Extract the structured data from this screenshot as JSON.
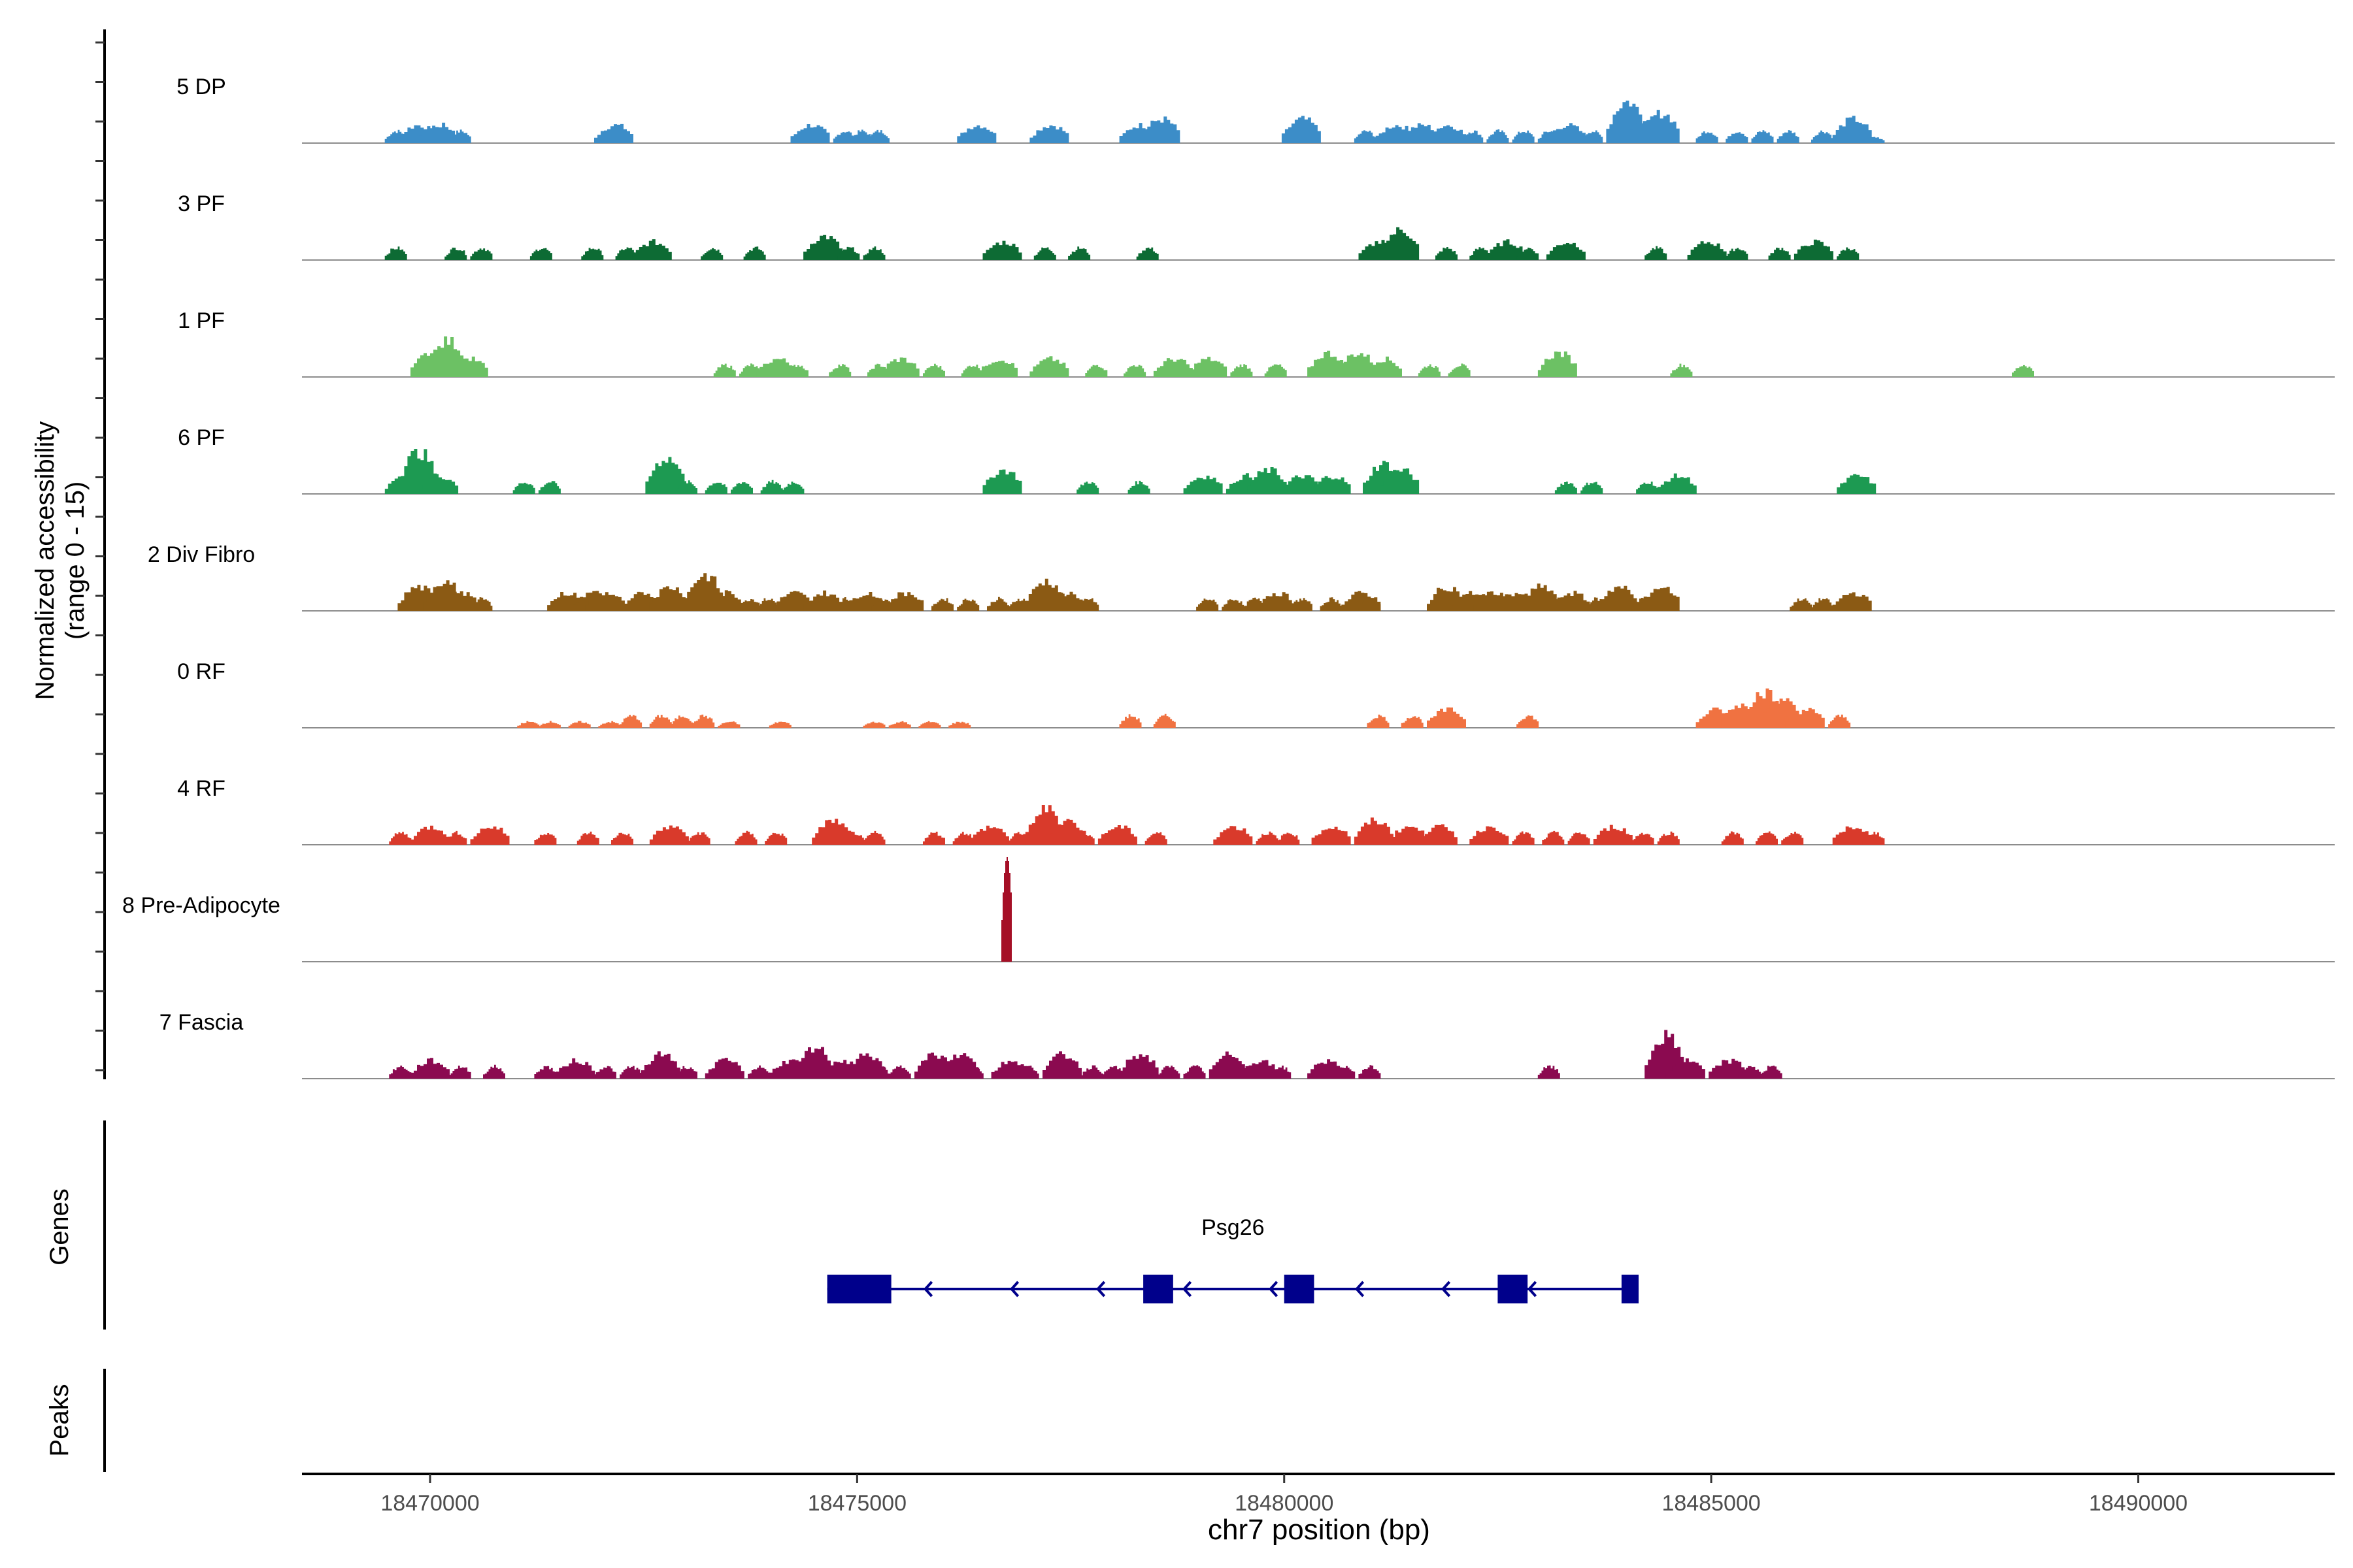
{
  "chart_data": {
    "type": "area",
    "title": "",
    "ylabel_line1": "Normalized accessibility",
    "ylabel_line2": "(range 0 - 15)",
    "ylim": [
      0,
      15
    ],
    "xlabel": "chr7 position (bp)",
    "xlim": [
      18468500,
      18492300
    ],
    "x_ticks": [
      18470000,
      18475000,
      18480000,
      18485000,
      18490000
    ],
    "x_tick_labels": [
      "18470000",
      "18475000",
      "18480000",
      "18485000",
      "18490000"
    ],
    "series": [
      {
        "name": "5 DP",
        "color": "#3C8DC8",
        "points": [
          [
            18469600,
            2
          ],
          [
            18469850,
            3
          ],
          [
            18470100,
            3
          ],
          [
            18470350,
            2
          ],
          [
            18472150,
            3
          ],
          [
            18474450,
            3
          ],
          [
            18474850,
            2
          ],
          [
            18475050,
            2
          ],
          [
            18475250,
            2
          ],
          [
            18476400,
            3
          ],
          [
            18477250,
            3
          ],
          [
            18478300,
            3
          ],
          [
            18478550,
            4
          ],
          [
            18480200,
            4
          ],
          [
            18480950,
            2
          ],
          [
            18481300,
            3
          ],
          [
            18481600,
            3
          ],
          [
            18481900,
            3
          ],
          [
            18482200,
            2
          ],
          [
            18482500,
            2
          ],
          [
            18482800,
            2
          ],
          [
            18483100,
            2
          ],
          [
            18483300,
            3
          ],
          [
            18483600,
            2
          ],
          [
            18484000,
            7
          ],
          [
            18484200,
            4
          ],
          [
            18484400,
            5
          ],
          [
            18484950,
            2
          ],
          [
            18485300,
            2
          ],
          [
            18485600,
            2
          ],
          [
            18485900,
            2
          ],
          [
            18486300,
            2
          ],
          [
            18486650,
            4
          ],
          [
            18486900,
            1
          ]
        ]
      },
      {
        "name": "3 PF",
        "color": "#0D6B34",
        "points": [
          [
            18469600,
            2
          ],
          [
            18470300,
            2
          ],
          [
            18470600,
            2
          ],
          [
            18471300,
            2
          ],
          [
            18471900,
            2
          ],
          [
            18472300,
            2
          ],
          [
            18472600,
            3
          ],
          [
            18473300,
            2
          ],
          [
            18473800,
            2
          ],
          [
            18474600,
            4
          ],
          [
            18474900,
            2
          ],
          [
            18475200,
            2
          ],
          [
            18476700,
            3
          ],
          [
            18477200,
            2
          ],
          [
            18477600,
            2
          ],
          [
            18478400,
            2
          ],
          [
            18481100,
            3
          ],
          [
            18481350,
            5
          ],
          [
            18481900,
            2
          ],
          [
            18482300,
            2
          ],
          [
            18482600,
            3
          ],
          [
            18482850,
            2
          ],
          [
            18483300,
            3
          ],
          [
            18484350,
            2
          ],
          [
            18484950,
            3
          ],
          [
            18485300,
            2
          ],
          [
            18485800,
            2
          ],
          [
            18486200,
            3
          ],
          [
            18486600,
            2
          ]
        ]
      },
      {
        "name": "1 PF",
        "color": "#6CC164",
        "points": [
          [
            18470000,
            4
          ],
          [
            18470200,
            6
          ],
          [
            18470450,
            3
          ],
          [
            18473450,
            2
          ],
          [
            18473750,
            2
          ],
          [
            18474050,
            3
          ],
          [
            18474300,
            2
          ],
          [
            18474800,
            2
          ],
          [
            18475250,
            2
          ],
          [
            18475500,
            3
          ],
          [
            18475900,
            2
          ],
          [
            18476350,
            2
          ],
          [
            18476650,
            3
          ],
          [
            18477250,
            3
          ],
          [
            18477800,
            2
          ],
          [
            18478250,
            2
          ],
          [
            18478700,
            3
          ],
          [
            18479100,
            3
          ],
          [
            18479500,
            2
          ],
          [
            18479900,
            2
          ],
          [
            18480500,
            4
          ],
          [
            18480850,
            4
          ],
          [
            18481150,
            3
          ],
          [
            18481700,
            2
          ],
          [
            18482050,
            2
          ],
          [
            18483200,
            4
          ],
          [
            18484650,
            2
          ],
          [
            18488650,
            2
          ]
        ]
      },
      {
        "name": "6 PF",
        "color": "#1D9A52",
        "points": [
          [
            18469700,
            3
          ],
          [
            18469850,
            7
          ],
          [
            18470100,
            3
          ],
          [
            18471100,
            2
          ],
          [
            18471400,
            2
          ],
          [
            18472750,
            6
          ],
          [
            18473000,
            2
          ],
          [
            18473350,
            2
          ],
          [
            18473650,
            2
          ],
          [
            18474000,
            2
          ],
          [
            18474250,
            2
          ],
          [
            18476700,
            4
          ],
          [
            18477700,
            2
          ],
          [
            18478300,
            2
          ],
          [
            18479050,
            3
          ],
          [
            18479550,
            3
          ],
          [
            18479800,
            4
          ],
          [
            18480200,
            3
          ],
          [
            18480550,
            3
          ],
          [
            18481150,
            5
          ],
          [
            18481350,
            4
          ],
          [
            18483300,
            2
          ],
          [
            18483600,
            2
          ],
          [
            18484250,
            2
          ],
          [
            18484600,
            3
          ],
          [
            18486700,
            3
          ]
        ]
      },
      {
        "name": "2 Div Fibro",
        "color": "#8B5A14",
        "points": [
          [
            18469850,
            4
          ],
          [
            18470150,
            5
          ],
          [
            18470350,
            3
          ],
          [
            18470600,
            2
          ],
          [
            18471600,
            3
          ],
          [
            18471900,
            3
          ],
          [
            18472050,
            3
          ],
          [
            18472500,
            3
          ],
          [
            18472800,
            4
          ],
          [
            18473200,
            6
          ],
          [
            18473450,
            3
          ],
          [
            18473750,
            2
          ],
          [
            18473950,
            2
          ],
          [
            18474250,
            3
          ],
          [
            18474600,
            3
          ],
          [
            18474850,
            2
          ],
          [
            18475100,
            3
          ],
          [
            18475300,
            2
          ],
          [
            18475550,
            3
          ],
          [
            18476000,
            2
          ],
          [
            18476300,
            2
          ],
          [
            18476650,
            2
          ],
          [
            18476900,
            2
          ],
          [
            18477200,
            5
          ],
          [
            18477450,
            3
          ],
          [
            18477700,
            2
          ],
          [
            18479100,
            2
          ],
          [
            18479400,
            2
          ],
          [
            18479650,
            2
          ],
          [
            18479900,
            3
          ],
          [
            18480200,
            2
          ],
          [
            18480550,
            2
          ],
          [
            18480900,
            3
          ],
          [
            18481000,
            2
          ],
          [
            18481900,
            4
          ],
          [
            18482200,
            3
          ],
          [
            18482450,
            3
          ],
          [
            18482700,
            3
          ],
          [
            18483000,
            4
          ],
          [
            18483350,
            3
          ],
          [
            18483650,
            2
          ],
          [
            18483900,
            4
          ],
          [
            18484200,
            2
          ],
          [
            18484400,
            4
          ],
          [
            18486050,
            2
          ],
          [
            18486300,
            2
          ],
          [
            18486650,
            3
          ]
        ]
      },
      {
        "name": "0 RF",
        "color": "#F07241",
        "points": [
          [
            18471150,
            1
          ],
          [
            18471400,
            1
          ],
          [
            18471750,
            1
          ],
          [
            18472100,
            1
          ],
          [
            18472350,
            2
          ],
          [
            18472700,
            2
          ],
          [
            18472950,
            2
          ],
          [
            18473200,
            2
          ],
          [
            18473500,
            1
          ],
          [
            18474100,
            1
          ],
          [
            18475200,
            1
          ],
          [
            18475500,
            1
          ],
          [
            18475850,
            1
          ],
          [
            18476200,
            1
          ],
          [
            18478200,
            2
          ],
          [
            18478600,
            2
          ],
          [
            18481100,
            2
          ],
          [
            18481500,
            2
          ],
          [
            18481900,
            3
          ],
          [
            18482850,
            2
          ],
          [
            18485050,
            3
          ],
          [
            18485350,
            4
          ],
          [
            18485600,
            6
          ],
          [
            18485800,
            5
          ],
          [
            18486100,
            3
          ],
          [
            18486500,
            2
          ]
        ]
      },
      {
        "name": "4 RF",
        "color": "#D93A2B",
        "points": [
          [
            18469650,
            2
          ],
          [
            18470000,
            3
          ],
          [
            18470300,
            2
          ],
          [
            18470700,
            3
          ],
          [
            18471350,
            2
          ],
          [
            18471850,
            2
          ],
          [
            18472250,
            2
          ],
          [
            18472800,
            3
          ],
          [
            18473150,
            2
          ],
          [
            18473700,
            2
          ],
          [
            18474050,
            2
          ],
          [
            18474700,
            4
          ],
          [
            18474950,
            2
          ],
          [
            18475200,
            2
          ],
          [
            18475900,
            2
          ],
          [
            18476250,
            2
          ],
          [
            18476550,
            3
          ],
          [
            18476900,
            2
          ],
          [
            18477200,
            6
          ],
          [
            18477450,
            4
          ],
          [
            18477650,
            2
          ],
          [
            18478050,
            3
          ],
          [
            18478500,
            2
          ],
          [
            18479400,
            3
          ],
          [
            18479800,
            2
          ],
          [
            18480050,
            2
          ],
          [
            18480550,
            3
          ],
          [
            18481050,
            4
          ],
          [
            18481450,
            3
          ],
          [
            18481800,
            3
          ],
          [
            18482400,
            3
          ],
          [
            18482800,
            2
          ],
          [
            18483150,
            2
          ],
          [
            18483450,
            2
          ],
          [
            18483850,
            3
          ],
          [
            18484200,
            2
          ],
          [
            18484500,
            2
          ],
          [
            18485250,
            2
          ],
          [
            18485650,
            2
          ],
          [
            18485950,
            2
          ],
          [
            18486650,
            3
          ],
          [
            18486900,
            2
          ]
        ]
      },
      {
        "name": "8 Pre-Adipocyte",
        "color": "#A50F26",
        "points": [
          [
            18476750,
            15
          ]
        ]
      },
      {
        "name": "7 Fascia",
        "color": "#8B0A50",
        "points": [
          [
            18469650,
            2
          ],
          [
            18470000,
            3
          ],
          [
            18470350,
            2
          ],
          [
            18470750,
            2
          ],
          [
            18471350,
            2
          ],
          [
            18471700,
            3
          ],
          [
            18472050,
            2
          ],
          [
            18472350,
            2
          ],
          [
            18472700,
            4
          ],
          [
            18473000,
            2
          ],
          [
            18473450,
            3
          ],
          [
            18473850,
            2
          ],
          [
            18474200,
            3
          ],
          [
            18474500,
            5
          ],
          [
            18474800,
            3
          ],
          [
            18475100,
            4
          ],
          [
            18475250,
            2
          ],
          [
            18475500,
            2
          ],
          [
            18475900,
            4
          ],
          [
            18476200,
            4
          ],
          [
            18476350,
            2
          ],
          [
            18476800,
            3
          ],
          [
            18477000,
            2
          ],
          [
            18477400,
            4
          ],
          [
            18477750,
            2
          ],
          [
            18478000,
            2
          ],
          [
            18478300,
            4
          ],
          [
            18478650,
            2
          ],
          [
            18478950,
            2
          ],
          [
            18479350,
            4
          ],
          [
            18479700,
            3
          ],
          [
            18479950,
            2
          ],
          [
            18480500,
            3
          ],
          [
            18480700,
            2
          ],
          [
            18481000,
            2
          ],
          [
            18483100,
            2
          ],
          [
            18484450,
            7
          ],
          [
            18484700,
            3
          ],
          [
            18485200,
            3
          ],
          [
            18485450,
            2
          ],
          [
            18485700,
            2
          ]
        ]
      }
    ],
    "genes_label": "Genes",
    "peaks_label": "Peaks",
    "gene": {
      "name": "Psg26",
      "color": "#00008B",
      "start": 18474650,
      "end": 18484150,
      "strand": "-",
      "exons": [
        [
          18474650,
          18475400
        ],
        [
          18478350,
          18478700
        ],
        [
          18480000,
          18480350
        ],
        [
          18482500,
          18482850
        ],
        [
          18483950,
          18484150
        ]
      ]
    }
  }
}
